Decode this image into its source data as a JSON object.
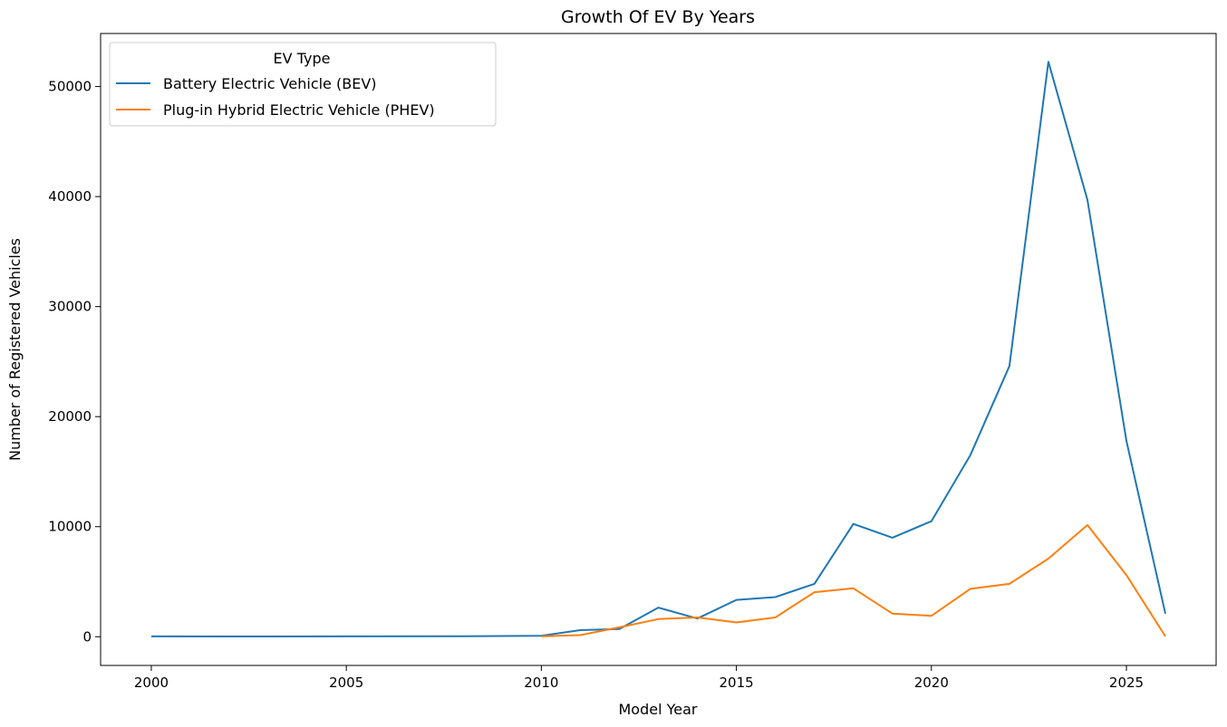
{
  "chart_data": {
    "type": "line",
    "title": "Growth Of EV By Years",
    "xlabel": "Model Year",
    "ylabel": "Number of Registered Vehicles",
    "xlim": [
      1998.7,
      2027.3
    ],
    "ylim": [
      -2610,
      54820
    ],
    "xticks": [
      2000,
      2005,
      2010,
      2015,
      2020,
      2025
    ],
    "yticks": [
      0,
      10000,
      20000,
      30000,
      40000,
      50000
    ],
    "legend": {
      "title": "EV Type",
      "placement": "top-left"
    },
    "series": [
      {
        "name": "Battery Electric Vehicle (BEV)",
        "color": "#1f77b4",
        "x": [
          2000,
          2002,
          2003,
          2008,
          2010,
          2011,
          2012,
          2013,
          2014,
          2015,
          2016,
          2017,
          2018,
          2019,
          2020,
          2021,
          2022,
          2023,
          2024,
          2025,
          2026
        ],
        "y": [
          30,
          20,
          20,
          50,
          80,
          600,
          700,
          2650,
          1650,
          3350,
          3600,
          4800,
          10250,
          9000,
          10500,
          16500,
          24600,
          52250,
          39700,
          17800,
          2100
        ]
      },
      {
        "name": "Plug-in Hybrid Electric Vehicle (PHEV)",
        "color": "#ff7f0e",
        "x": [
          2010,
          2011,
          2012,
          2013,
          2014,
          2015,
          2016,
          2017,
          2018,
          2019,
          2020,
          2021,
          2022,
          2023,
          2024,
          2025,
          2026
        ],
        "y": [
          30,
          150,
          850,
          1600,
          1750,
          1300,
          1750,
          4050,
          4400,
          2100,
          1900,
          4350,
          4800,
          7100,
          10150,
          5600,
          30
        ]
      }
    ]
  }
}
